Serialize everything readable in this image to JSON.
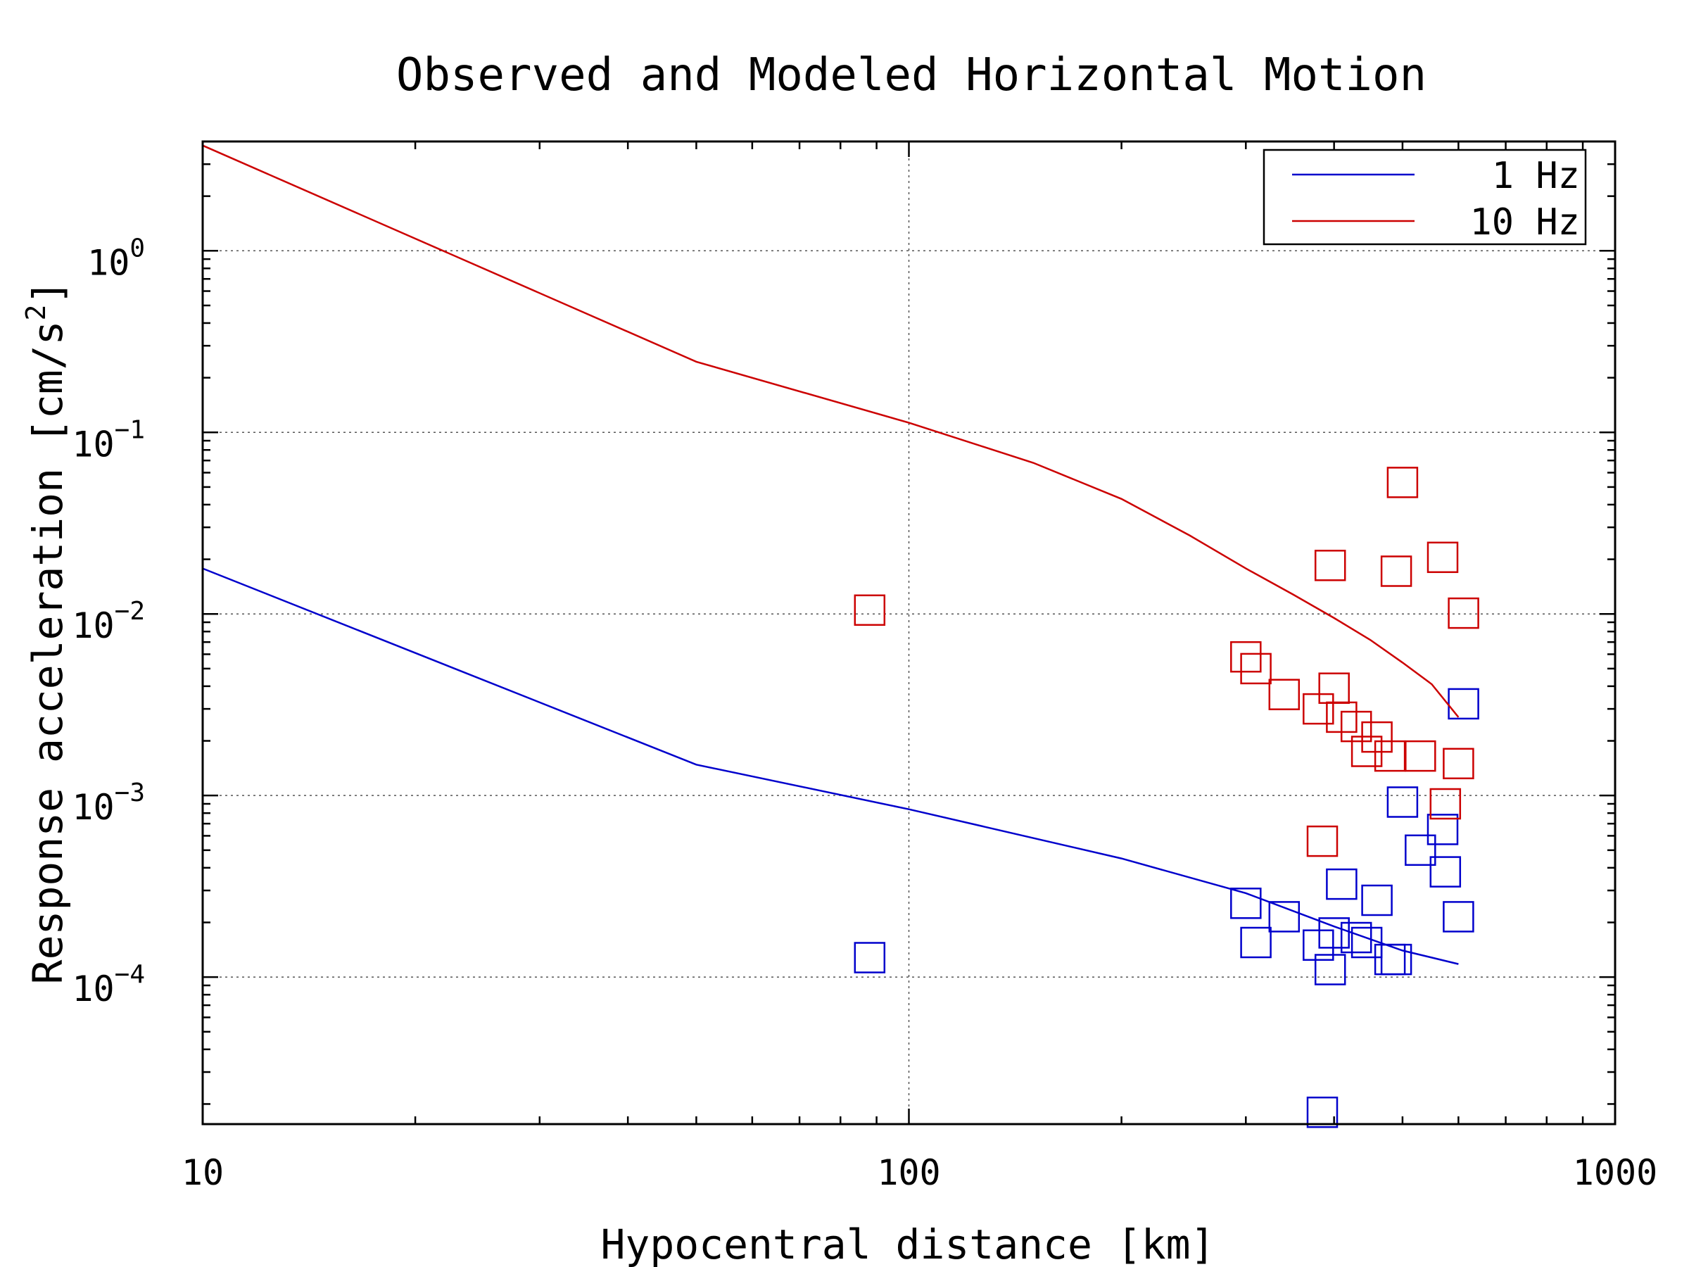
{
  "chart_data": {
    "type": "scatter",
    "title": "Observed and Modeled Horizontal Motion",
    "xlabel": "Hypocentral distance [km]",
    "ylabel": "Response acceleration [cm/s²]",
    "ylabel_parts": {
      "main": "Response acceleration [cm/s",
      "sup": "2",
      "end": "]"
    },
    "x_scale": "log",
    "y_scale": "log",
    "xlim": [
      10,
      1000
    ],
    "ylim": [
      1.55e-05,
      4.0
    ],
    "x_ticks": [
      {
        "value": 10,
        "label": "10"
      },
      {
        "value": 100,
        "label": "100"
      },
      {
        "value": 1000,
        "label": "1000"
      }
    ],
    "y_ticks": [
      {
        "value": 0.0001,
        "base": "10",
        "exp": "−4"
      },
      {
        "value": 0.001,
        "base": "10",
        "exp": "−3"
      },
      {
        "value": 0.01,
        "base": "10",
        "exp": "−2"
      },
      {
        "value": 0.1,
        "base": "10",
        "exp": "−1"
      },
      {
        "value": 1,
        "base": "10",
        "exp": "0"
      }
    ],
    "grid": true,
    "legend_position": "top-right",
    "series": [
      {
        "name": "1 Hz",
        "color": "#0000cc",
        "curve": [
          [
            10,
            0.0178
          ],
          [
            50,
            0.00148
          ],
          [
            100,
            0.00084
          ],
          [
            200,
            0.00045
          ],
          [
            300,
            0.00029
          ],
          [
            400,
            0.00019
          ],
          [
            500,
            0.00014
          ],
          [
            600,
            0.000118
          ]
        ],
        "points": [
          [
            88,
            0.000128
          ],
          [
            300,
            0.000255
          ],
          [
            310,
            0.000155
          ],
          [
            340,
            0.000215
          ],
          [
            380,
            0.00015
          ],
          [
            385,
            1.8e-05
          ],
          [
            395,
            0.00011
          ],
          [
            400,
            0.000175
          ],
          [
            410,
            0.000325
          ],
          [
            430,
            0.000165
          ],
          [
            445,
            0.000155
          ],
          [
            460,
            0.000265
          ],
          [
            480,
            0.000125
          ],
          [
            490,
            0.000125
          ],
          [
            500,
            0.00092
          ],
          [
            530,
            0.0005
          ],
          [
            570,
            0.00065
          ],
          [
            575,
            0.00038
          ],
          [
            600,
            0.000215
          ],
          [
            610,
            0.0032
          ]
        ]
      },
      {
        "name": "10 Hz",
        "color": "#cc0000",
        "curve": [
          [
            10,
            3.8
          ],
          [
            50,
            0.245
          ],
          [
            100,
            0.113
          ],
          [
            150,
            0.068
          ],
          [
            200,
            0.043
          ],
          [
            250,
            0.027
          ],
          [
            300,
            0.0178
          ],
          [
            350,
            0.0128
          ],
          [
            400,
            0.0095
          ],
          [
            450,
            0.0072
          ],
          [
            500,
            0.0054
          ],
          [
            550,
            0.0041
          ],
          [
            600,
            0.0027
          ]
        ],
        "points": [
          [
            88,
            0.0105
          ],
          [
            300,
            0.0058
          ],
          [
            310,
            0.005
          ],
          [
            340,
            0.0036
          ],
          [
            380,
            0.003
          ],
          [
            385,
            0.00056
          ],
          [
            395,
            0.0185
          ],
          [
            400,
            0.0039
          ],
          [
            410,
            0.0027
          ],
          [
            430,
            0.0024
          ],
          [
            445,
            0.00175
          ],
          [
            460,
            0.0021
          ],
          [
            480,
            0.00165
          ],
          [
            490,
            0.0172
          ],
          [
            500,
            0.053
          ],
          [
            530,
            0.00165
          ],
          [
            570,
            0.0205
          ],
          [
            575,
            0.0009
          ],
          [
            600,
            0.0015
          ],
          [
            610,
            0.0101
          ]
        ]
      }
    ]
  }
}
